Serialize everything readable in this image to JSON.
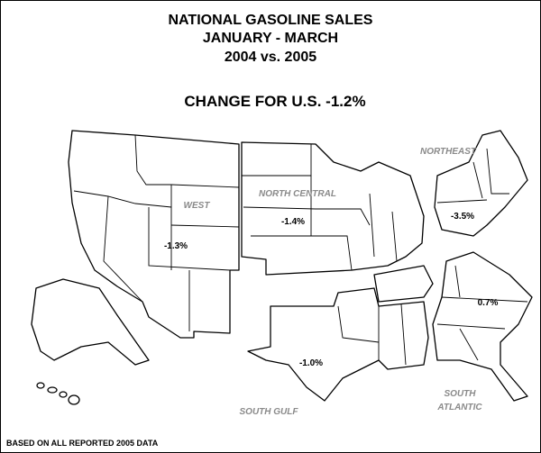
{
  "title": [
    "NATIONAL GASOLINE SALES",
    "JANUARY - MARCH",
    "2004 vs. 2005"
  ],
  "headline": "CHANGE FOR U.S. -1.2%",
  "regions": [
    {
      "name": [
        "WEST"
      ],
      "change": "-1.3%"
    },
    {
      "name": [
        "NORTH CENTRAL"
      ],
      "change": "-1.4%"
    },
    {
      "name": [
        "NORTHEAST"
      ],
      "change": "-3.5%"
    },
    {
      "name": [
        "SOUTH GULF"
      ],
      "change": "-1.0%"
    },
    {
      "name": [
        "SOUTH",
        "ATLANTIC"
      ],
      "change": "0.7%"
    }
  ],
  "footnote": "BASED ON ALL REPORTED 2005 DATA"
}
